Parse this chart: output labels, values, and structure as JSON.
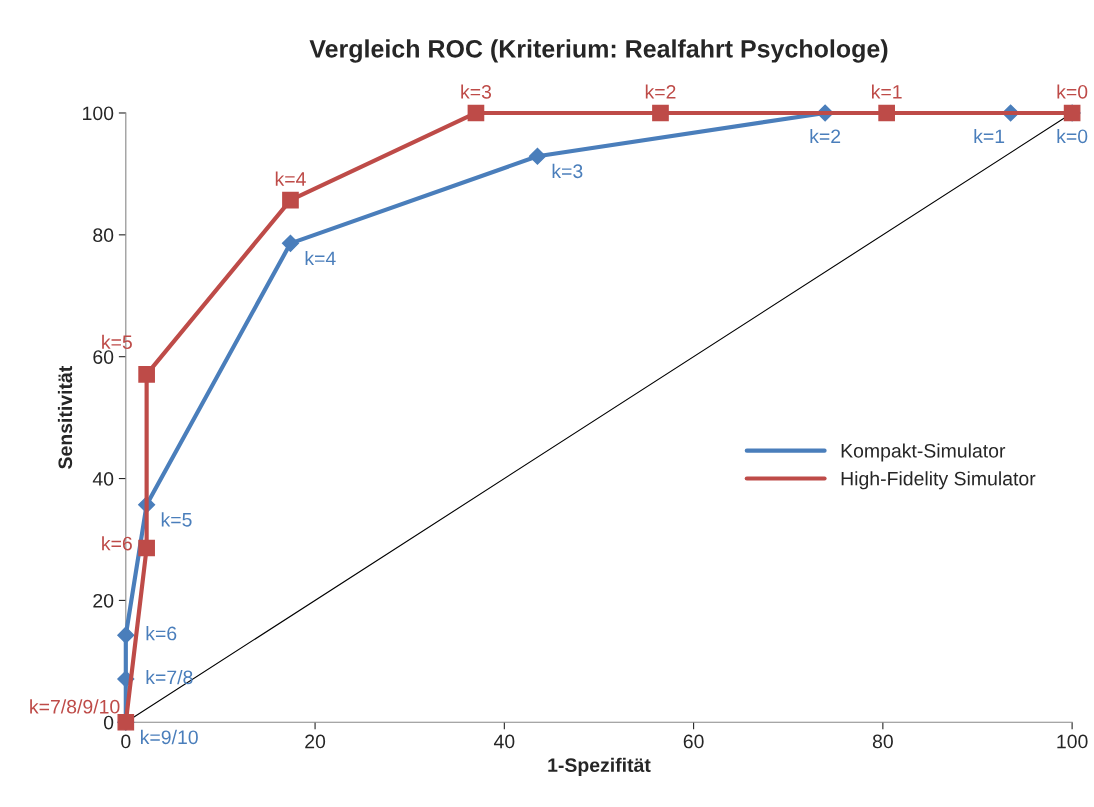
{
  "chart_data": {
    "type": "line",
    "title": "Vergleich ROC (Kriterium: Realfahrt Psychologe)",
    "xlabel": "1-Spezifität",
    "ylabel": "Sensitivität",
    "xlim": [
      0,
      100
    ],
    "ylim": [
      0,
      100
    ],
    "xticks": [
      0,
      20,
      40,
      60,
      80,
      100
    ],
    "yticks": [
      0,
      20,
      40,
      60,
      80,
      100
    ],
    "grid": false,
    "legend": "right",
    "line_style": "solid",
    "series": [
      {
        "name": "Kompakt-Simulator",
        "color": "#4a7ebb",
        "marker": "diamond",
        "x": [
          0,
          0,
          0,
          2.2,
          17.4,
          43.5,
          73.9,
          93.5,
          100
        ],
        "values": [
          0,
          7.1,
          14.3,
          35.7,
          78.6,
          92.9,
          100,
          100,
          100
        ]
      },
      {
        "name": "High-Fidelity Simulator",
        "color": "#be4b48",
        "marker": "square",
        "x": [
          0,
          2.2,
          2.2,
          17.4,
          37,
          56.5,
          80.4,
          100
        ],
        "values": [
          0,
          28.6,
          57.1,
          85.7,
          100,
          100,
          100,
          100
        ]
      },
      {
        "color": "#000000",
        "marker": "none",
        "x": [
          0,
          100
        ],
        "values": [
          0,
          100
        ]
      }
    ],
    "annotations": [
      {
        "text": "k=9/10",
        "x": 0,
        "y": 0
      },
      {
        "text": "k=7/8",
        "x": 0,
        "y": 7.1
      },
      {
        "text": "k=6",
        "x": 0,
        "y": 14.3
      },
      {
        "text": "k=5",
        "x": 2.2,
        "y": 35.7
      },
      {
        "text": "k=4",
        "x": 17.4,
        "y": 78.6
      },
      {
        "text": "k=3",
        "x": 43.5,
        "y": 92.9
      },
      {
        "text": "k=2",
        "x": 73.9,
        "y": 100
      },
      {
        "text": "k=1",
        "x": 93.5,
        "y": 100
      },
      {
        "text": "k=0",
        "x": 100,
        "y": 100
      },
      {
        "text": "k=7/8/9/10",
        "x": 0,
        "y": 0
      },
      {
        "text": "k=6",
        "x": 2.2,
        "y": 28.6
      },
      {
        "text": "k=5",
        "x": 2.2,
        "y": 57.1
      },
      {
        "text": "k=4",
        "x": 17.4,
        "y": 85.7
      },
      {
        "text": "k=3",
        "x": 37,
        "y": 100
      },
      {
        "text": "k=2",
        "x": 56.5,
        "y": 100
      },
      {
        "text": "k=1",
        "x": 80.4,
        "y": 100
      },
      {
        "text": "k=0",
        "x": 100,
        "y": 100
      }
    ]
  }
}
